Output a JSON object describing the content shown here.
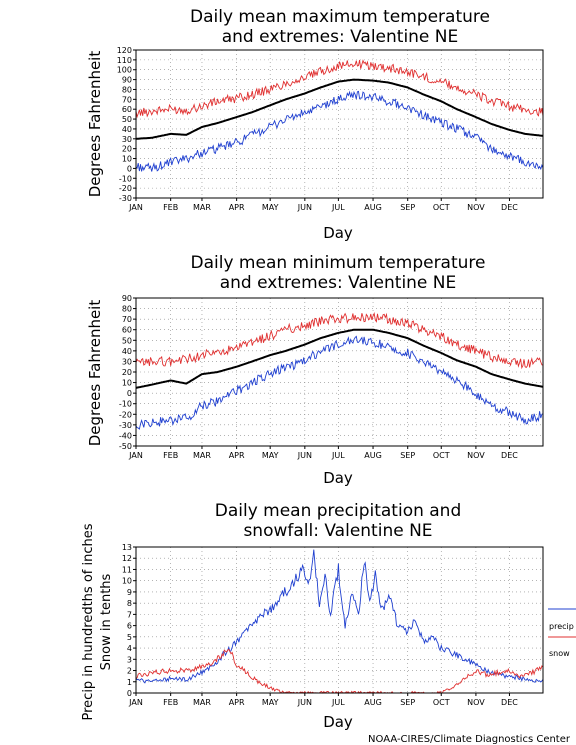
{
  "footer": "NOAA-CIRES/Climate Diagnostics Center",
  "chart_data": [
    {
      "type": "line",
      "title": [
        "Daily mean maximum temperature",
        "and extremes: Valentine NE"
      ],
      "xlabel": "Day",
      "ylabel": "Degrees Fahrenheit",
      "ylim": [
        -30,
        120
      ],
      "yticks": [
        -30,
        -20,
        -10,
        0,
        10,
        20,
        30,
        40,
        50,
        60,
        70,
        80,
        90,
        100,
        110,
        120
      ],
      "months": [
        "JAN",
        "FEB",
        "MAR",
        "APR",
        "MAY",
        "JUN",
        "JUL",
        "AUG",
        "SEP",
        "OCT",
        "NOV",
        "DEC"
      ],
      "grid": true,
      "x": [
        1,
        15,
        32,
        46,
        60,
        74,
        91,
        105,
        121,
        135,
        152,
        166,
        182,
        196,
        213,
        227,
        244,
        258,
        274,
        288,
        305,
        319,
        335,
        349,
        365
      ],
      "series": [
        {
          "role": "max",
          "color": "#e03030",
          "values": [
            56,
            58,
            60,
            59,
            63,
            68,
            71,
            75,
            80,
            86,
            92,
            98,
            104,
            106,
            104,
            102,
            98,
            93,
            88,
            82,
            75,
            68,
            63,
            59,
            57
          ]
        },
        {
          "role": "mean",
          "color": "#000000",
          "values": [
            30,
            31,
            35,
            34,
            42,
            46,
            52,
            57,
            64,
            70,
            76,
            82,
            88,
            90,
            89,
            87,
            82,
            75,
            68,
            60,
            52,
            45,
            39,
            35,
            33
          ]
        },
        {
          "role": "min",
          "color": "#2040d0",
          "values": [
            2,
            0,
            6,
            10,
            16,
            20,
            26,
            34,
            42,
            50,
            56,
            62,
            70,
            75,
            72,
            68,
            62,
            54,
            46,
            40,
            32,
            20,
            12,
            6,
            0
          ]
        }
      ]
    },
    {
      "type": "line",
      "title": [
        "Daily mean minimum temperature",
        "and extremes: Valentine NE"
      ],
      "xlabel": "Day",
      "ylabel": "Degrees Fahrenheit",
      "ylim": [
        -50,
        90
      ],
      "yticks": [
        -50,
        -40,
        -30,
        -20,
        -10,
        0,
        10,
        20,
        30,
        40,
        50,
        60,
        70,
        80,
        90
      ],
      "months": [
        "JAN",
        "FEB",
        "MAR",
        "APR",
        "MAY",
        "JUN",
        "JUL",
        "AUG",
        "SEP",
        "OCT",
        "NOV",
        "DEC"
      ],
      "grid": true,
      "x": [
        1,
        15,
        32,
        46,
        60,
        74,
        91,
        105,
        121,
        135,
        152,
        166,
        182,
        196,
        213,
        227,
        244,
        258,
        274,
        288,
        305,
        319,
        335,
        349,
        365
      ],
      "series": [
        {
          "role": "max",
          "color": "#e03030",
          "values": [
            28,
            30,
            30,
            32,
            36,
            38,
            42,
            48,
            54,
            60,
            64,
            68,
            70,
            72,
            72,
            70,
            66,
            60,
            54,
            46,
            40,
            34,
            30,
            28,
            30
          ]
        },
        {
          "role": "mean",
          "color": "#000000",
          "values": [
            5,
            8,
            12,
            9,
            18,
            20,
            25,
            30,
            36,
            40,
            46,
            52,
            57,
            60,
            60,
            57,
            52,
            45,
            38,
            31,
            25,
            18,
            13,
            9,
            6
          ]
        },
        {
          "role": "min",
          "color": "#2040d0",
          "values": [
            -30,
            -28,
            -26,
            -24,
            -12,
            -8,
            2,
            10,
            18,
            24,
            30,
            40,
            46,
            50,
            48,
            44,
            38,
            30,
            20,
            12,
            0,
            -12,
            -18,
            -26,
            -20
          ]
        }
      ]
    },
    {
      "type": "line",
      "title": [
        "Daily mean precipitation and",
        "snowfall: Valentine NE"
      ],
      "xlabel": "Day",
      "ylabel": [
        "Precip in hundredths of inches",
        "Snow in tenths"
      ],
      "ylim": [
        0,
        13
      ],
      "yticks": [
        0,
        1,
        2,
        3,
        4,
        5,
        6,
        7,
        8,
        9,
        10,
        11,
        12,
        13
      ],
      "months": [
        "JAN",
        "FEB",
        "MAR",
        "APR",
        "MAY",
        "JUN",
        "JUL",
        "AUG",
        "SEP",
        "OCT",
        "NOV",
        "DEC"
      ],
      "grid": true,
      "legend": {
        "position": "right",
        "items": [
          {
            "name": "precip",
            "color": "#2040d0"
          },
          {
            "name": "snow",
            "color": "#e03030"
          }
        ]
      },
      "series": [
        {
          "name": "precip",
          "color": "#2040d0",
          "x": [
            1,
            15,
            32,
            46,
            60,
            70,
            80,
            91,
            100,
            110,
            121,
            130,
            140,
            150,
            155,
            160,
            165,
            170,
            175,
            182,
            188,
            195,
            200,
            205,
            210,
            215,
            220,
            228,
            235,
            244,
            250,
            258,
            265,
            274,
            285,
            295,
            305,
            315,
            325,
            335,
            345,
            355,
            365
          ],
          "values": [
            1.2,
            1,
            1.3,
            1.2,
            1.8,
            2.5,
            3.5,
            4.5,
            5.5,
            6.5,
            7.5,
            8.5,
            9.5,
            11,
            9.5,
            12.5,
            8,
            10.5,
            7,
            11,
            6,
            9,
            7,
            12,
            8,
            10.5,
            7.5,
            8.5,
            6,
            5.5,
            6.5,
            4.5,
            5,
            4,
            3.5,
            3,
            2.5,
            2,
            1.6,
            1.5,
            1.3,
            1,
            1.2
          ]
        },
        {
          "name": "snow",
          "color": "#e03030",
          "x": [
            1,
            15,
            32,
            46,
            60,
            70,
            78,
            85,
            91,
            100,
            110,
            121,
            125,
            130,
            140,
            150,
            160,
            180,
            200,
            220,
            240,
            260,
            270,
            275,
            280,
            285,
            290,
            300,
            305,
            315,
            325,
            335,
            345,
            355,
            365
          ],
          "values": [
            1.5,
            1.8,
            2,
            2,
            2.3,
            2.7,
            3.5,
            3.8,
            2.5,
            1.8,
            1,
            0.5,
            0.3,
            0.1,
            0,
            0,
            0,
            0,
            0,
            0,
            0,
            0,
            0,
            0.1,
            0.3,
            0.6,
            1,
            1.6,
            2,
            1.6,
            1.8,
            2,
            1.5,
            1.8,
            2.3
          ]
        }
      ]
    }
  ]
}
